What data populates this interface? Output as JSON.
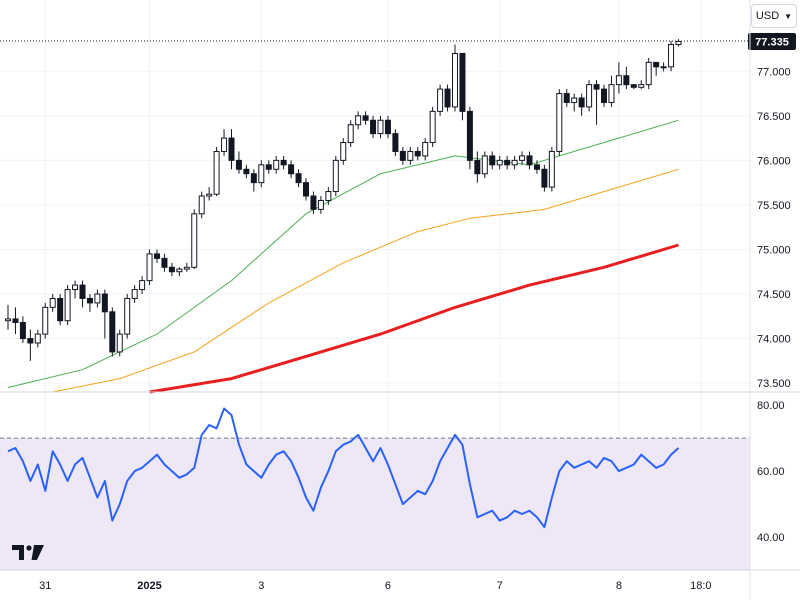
{
  "currency_selector": {
    "label": "USD",
    "icon": "chevron-down-icon"
  },
  "logo": {
    "icon": "tradingview-logo-icon"
  },
  "colors": {
    "up_candle": "#ffffff",
    "down_candle": "#131722",
    "ma_short": "#4caf50",
    "ma_mid": "#f7a21b",
    "ma_long": "#e91e1e",
    "rsi": "#2962ff",
    "rsi_band": "#ede7f6",
    "price_tag": "#131722"
  },
  "chart_data": [
    {
      "type": "candlestick",
      "title": "",
      "last_price": 77.335,
      "last_price_label": "77.335",
      "y_ticks": [
        73.5,
        74.0,
        74.5,
        75.0,
        75.5,
        76.0,
        76.5,
        77.0
      ],
      "y_tick_labels": [
        "73.500",
        "74.000",
        "74.500",
        "75.000",
        "75.500",
        "76.000",
        "76.500",
        "77.000"
      ],
      "ylim": [
        73.4,
        77.8
      ],
      "x_tick_labels": [
        "31",
        "2025",
        "3",
        "6",
        "7",
        "8",
        "18:0"
      ],
      "x_tick_index": [
        5,
        19,
        34,
        51,
        66,
        82,
        93
      ],
      "candles": [
        [
          74.2,
          74.22,
          74.1,
          74.38
        ],
        [
          74.22,
          74.18,
          74.05,
          74.35
        ],
        [
          74.18,
          74.0,
          73.95,
          74.25
        ],
        [
          74.0,
          73.95,
          73.75,
          74.1
        ],
        [
          73.95,
          74.05,
          73.9,
          74.1
        ],
        [
          74.05,
          74.35,
          74.0,
          74.4
        ],
        [
          74.35,
          74.45,
          74.3,
          74.5
        ],
        [
          74.45,
          74.2,
          74.15,
          74.5
        ],
        [
          74.2,
          74.55,
          74.15,
          74.6
        ],
        [
          74.55,
          74.6,
          74.45,
          74.65
        ],
        [
          74.6,
          74.45,
          74.35,
          74.65
        ],
        [
          74.45,
          74.4,
          74.3,
          74.5
        ],
        [
          74.4,
          74.5,
          74.35,
          74.55
        ],
        [
          74.5,
          74.3,
          74.0,
          74.55
        ],
        [
          74.3,
          73.85,
          73.8,
          74.35
        ],
        [
          73.85,
          74.05,
          73.8,
          74.1
        ],
        [
          74.05,
          74.45,
          74.0,
          74.5
        ],
        [
          74.45,
          74.55,
          74.4,
          74.6
        ],
        [
          74.55,
          74.65,
          74.5,
          74.7
        ],
        [
          74.65,
          74.95,
          74.6,
          75.0
        ],
        [
          74.95,
          74.9,
          74.85,
          75.0
        ],
        [
          74.9,
          74.8,
          74.75,
          74.95
        ],
        [
          74.8,
          74.75,
          74.7,
          74.85
        ],
        [
          74.75,
          74.78,
          74.7,
          74.8
        ],
        [
          74.78,
          74.8,
          74.75,
          74.85
        ],
        [
          74.8,
          75.4,
          74.78,
          75.45
        ],
        [
          75.4,
          75.6,
          75.35,
          75.65
        ],
        [
          75.6,
          75.62,
          75.55,
          75.7
        ],
        [
          75.62,
          76.1,
          75.6,
          76.15
        ],
        [
          76.1,
          76.25,
          76.05,
          76.35
        ],
        [
          76.25,
          76.0,
          75.9,
          76.35
        ],
        [
          76.0,
          75.9,
          75.85,
          76.1
        ],
        [
          75.9,
          75.85,
          75.8,
          75.95
        ],
        [
          75.85,
          75.75,
          75.65,
          75.9
        ],
        [
          75.75,
          75.95,
          75.7,
          76.0
        ],
        [
          75.95,
          75.9,
          75.85,
          76.0
        ],
        [
          75.9,
          76.0,
          75.85,
          76.05
        ],
        [
          76.0,
          75.95,
          75.9,
          76.05
        ],
        [
          75.95,
          75.85,
          75.8,
          76.0
        ],
        [
          75.85,
          75.75,
          75.7,
          75.9
        ],
        [
          75.75,
          75.6,
          75.55,
          75.8
        ],
        [
          75.6,
          75.45,
          75.4,
          75.65
        ],
        [
          75.45,
          75.55,
          75.4,
          75.6
        ],
        [
          75.55,
          75.65,
          75.5,
          75.7
        ],
        [
          75.65,
          76.0,
          75.6,
          76.05
        ],
        [
          76.0,
          76.2,
          75.95,
          76.25
        ],
        [
          76.2,
          76.4,
          76.15,
          76.45
        ],
        [
          76.4,
          76.5,
          76.35,
          76.55
        ],
        [
          76.5,
          76.45,
          76.4,
          76.55
        ],
        [
          76.45,
          76.3,
          76.25,
          76.5
        ],
        [
          76.3,
          76.45,
          76.25,
          76.5
        ],
        [
          76.45,
          76.3,
          76.25,
          76.5
        ],
        [
          76.3,
          76.1,
          76.05,
          76.35
        ],
        [
          76.1,
          76.0,
          75.95,
          76.15
        ],
        [
          76.0,
          76.1,
          75.95,
          76.15
        ],
        [
          76.1,
          76.05,
          76.0,
          76.15
        ],
        [
          76.05,
          76.2,
          76.0,
          76.25
        ],
        [
          76.2,
          76.55,
          76.15,
          76.6
        ],
        [
          76.55,
          76.8,
          76.5,
          76.85
        ],
        [
          76.8,
          76.6,
          76.55,
          76.85
        ],
        [
          76.6,
          77.2,
          76.55,
          77.3
        ],
        [
          77.2,
          76.55,
          76.45,
          77.2
        ],
        [
          76.55,
          76.0,
          75.9,
          76.6
        ],
        [
          76.0,
          75.85,
          75.75,
          76.1
        ],
        [
          75.85,
          76.05,
          75.8,
          76.1
        ],
        [
          76.05,
          75.95,
          75.9,
          76.1
        ],
        [
          75.95,
          76.0,
          75.9,
          76.05
        ],
        [
          76.0,
          75.95,
          75.9,
          76.05
        ],
        [
          75.95,
          76.0,
          75.9,
          76.05
        ],
        [
          76.0,
          76.05,
          75.95,
          76.1
        ],
        [
          76.05,
          75.95,
          75.9,
          76.1
        ],
        [
          75.95,
          75.9,
          75.85,
          76.0
        ],
        [
          75.9,
          75.7,
          75.65,
          75.95
        ],
        [
          75.7,
          76.1,
          75.65,
          76.15
        ],
        [
          76.1,
          76.75,
          76.05,
          76.8
        ],
        [
          76.75,
          76.65,
          76.6,
          76.8
        ],
        [
          76.65,
          76.7,
          76.55,
          76.75
        ],
        [
          76.7,
          76.6,
          76.5,
          76.75
        ],
        [
          76.6,
          76.85,
          76.55,
          76.9
        ],
        [
          76.85,
          76.8,
          76.4,
          76.9
        ],
        [
          76.8,
          76.65,
          76.6,
          76.85
        ],
        [
          76.65,
          76.85,
          76.6,
          76.95
        ],
        [
          76.85,
          76.95,
          76.75,
          77.1
        ],
        [
          76.95,
          76.85,
          76.8,
          77.05
        ],
        [
          76.85,
          76.82,
          76.8,
          76.85
        ],
        [
          76.82,
          76.85,
          76.8,
          76.9
        ],
        [
          76.85,
          77.1,
          76.8,
          77.15
        ],
        [
          77.1,
          77.05,
          76.95,
          77.1
        ],
        [
          77.05,
          77.05,
          77.0,
          77.1
        ],
        [
          77.05,
          77.3,
          77.0,
          77.34
        ],
        [
          77.3,
          77.335,
          77.28,
          77.36
        ]
      ],
      "candle_fields": [
        "open",
        "close",
        "low",
        "high"
      ],
      "moving_averages": [
        {
          "key": "ma_short",
          "points": [
            [
              0,
              73.45
            ],
            [
              10,
              73.65
            ],
            [
              20,
              74.05
            ],
            [
              30,
              74.65
            ],
            [
              40,
              75.4
            ],
            [
              50,
              75.85
            ],
            [
              60,
              76.05
            ],
            [
              70,
              75.95
            ],
            [
              80,
              76.2
            ],
            [
              90,
              76.45
            ]
          ]
        },
        {
          "key": "ma_mid",
          "points": [
            [
              6,
              73.4
            ],
            [
              15,
              73.55
            ],
            [
              25,
              73.85
            ],
            [
              35,
              74.4
            ],
            [
              45,
              74.85
            ],
            [
              55,
              75.2
            ],
            [
              62,
              75.35
            ],
            [
              72,
              75.45
            ],
            [
              82,
              75.7
            ],
            [
              90,
              75.9
            ]
          ]
        },
        {
          "key": "ma_long",
          "points": [
            [
              19,
              73.4
            ],
            [
              30,
              73.55
            ],
            [
              40,
              73.8
            ],
            [
              50,
              74.05
            ],
            [
              60,
              74.35
            ],
            [
              70,
              74.6
            ],
            [
              80,
              74.8
            ],
            [
              90,
              75.05
            ]
          ]
        }
      ]
    },
    {
      "type": "line",
      "title": "",
      "y_ticks": [
        40,
        60,
        80
      ],
      "y_tick_labels": [
        "40.00",
        "60.00",
        "80.00"
      ],
      "ylim": [
        30,
        84
      ],
      "band": [
        30,
        70
      ],
      "series": [
        {
          "key": "rsi",
          "values": [
            66,
            67,
            63,
            57,
            62,
            54,
            66,
            62,
            57,
            62,
            64,
            58,
            52,
            57,
            45,
            50,
            57,
            60,
            61,
            63,
            65,
            62,
            60,
            58,
            59,
            61,
            71,
            74,
            73,
            79,
            77,
            68,
            62,
            60,
            58,
            62,
            65,
            66,
            63,
            58,
            52,
            48,
            55,
            60,
            66,
            68,
            69,
            71,
            67,
            63,
            67,
            62,
            56,
            50,
            52,
            54,
            53,
            57,
            63,
            67,
            71,
            68,
            56,
            46,
            47,
            48,
            45,
            46,
            48,
            47,
            48,
            46,
            43,
            52,
            60,
            63,
            61,
            62,
            63,
            61,
            64,
            63,
            60,
            61,
            62,
            65,
            63,
            61,
            62,
            65,
            67
          ]
        }
      ]
    }
  ]
}
